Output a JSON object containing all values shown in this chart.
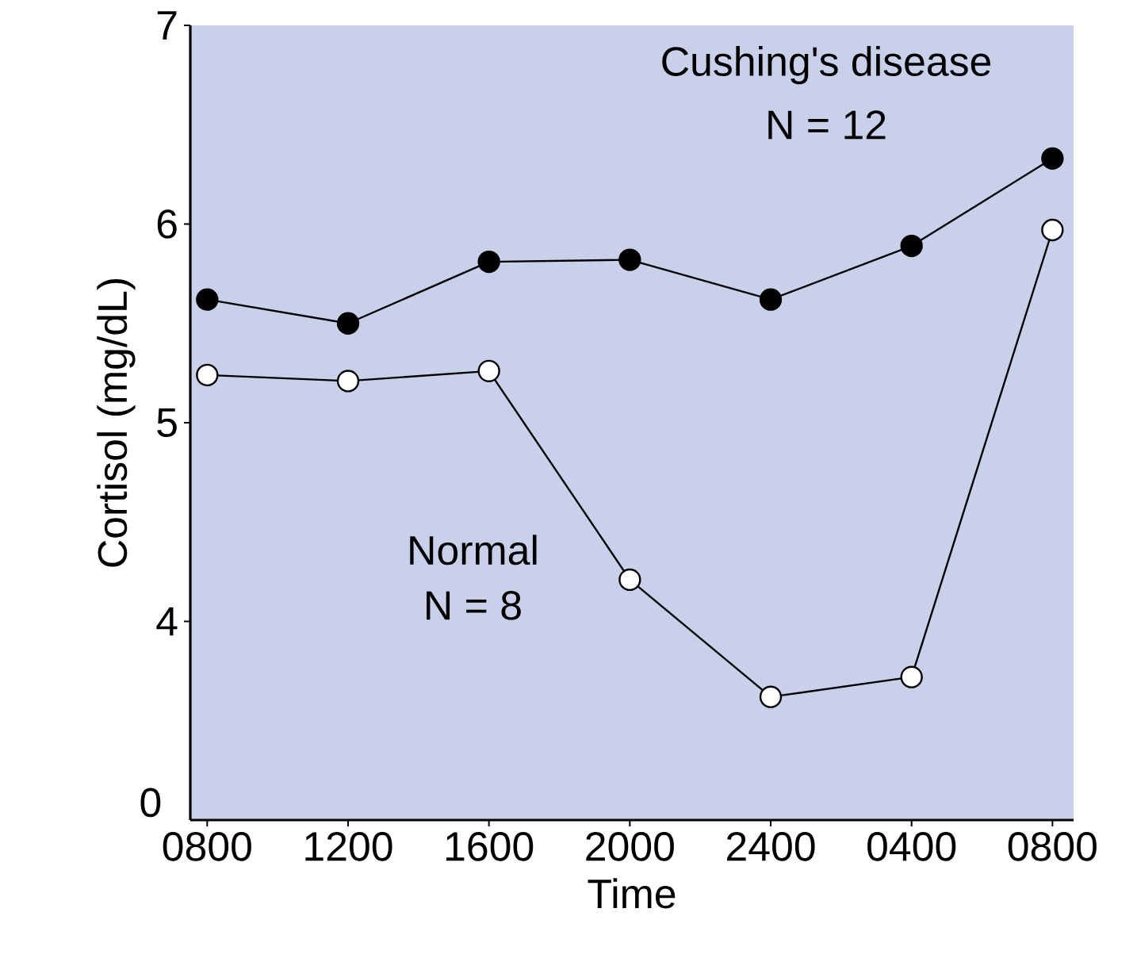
{
  "chart_data": {
    "type": "line",
    "xlabel": "Time",
    "ylabel": "Cortisol (mg/dL)",
    "categories": [
      "0800",
      "1200",
      "1600",
      "2000",
      "2400",
      "0400",
      "0800"
    ],
    "series": [
      {
        "name": "Cushing's disease",
        "color": "#000000",
        "values": [
          5.62,
          5.5,
          5.81,
          5.82,
          5.62,
          5.89,
          6.33
        ]
      },
      {
        "name": "Normal",
        "color": "#000000",
        "values": [
          5.24,
          5.21,
          5.26,
          4.21,
          3.62,
          3.72,
          5.97
        ]
      }
    ],
    "annotations": [
      "N = 12",
      "N = 8",
      "0"
    ],
    "ylim": [
      3,
      7
    ],
    "yticks": [
      4,
      5,
      6,
      7
    ],
    "marker": "circle",
    "line_style": "solid",
    "grid": false,
    "legend": false
  }
}
